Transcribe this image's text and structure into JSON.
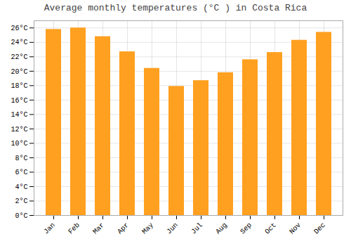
{
  "chart_data": {
    "type": "bar",
    "title": "Average monthly temperatures (°C ) in Costa Rica",
    "categories": [
      "Jan",
      "Feb",
      "Mar",
      "Apr",
      "May",
      "Jun",
      "Jul",
      "Aug",
      "Sep",
      "Oct",
      "Nov",
      "Dec"
    ],
    "values": [
      25.8,
      26.0,
      24.8,
      22.7,
      20.4,
      17.9,
      18.7,
      19.8,
      21.6,
      22.6,
      24.3,
      25.4
    ],
    "color": "#FFA020",
    "ylim": [
      0,
      27
    ],
    "yticks": [
      {
        "value": 0,
        "label": "0°C"
      },
      {
        "value": 2,
        "label": "2°C"
      },
      {
        "value": 4,
        "label": "4°C"
      },
      {
        "value": 6,
        "label": "6°C"
      },
      {
        "value": 8,
        "label": "8°C"
      },
      {
        "value": 10,
        "label": "10°C"
      },
      {
        "value": 12,
        "label": "12°C"
      },
      {
        "value": 14,
        "label": "14°C"
      },
      {
        "value": 16,
        "label": "16°C"
      },
      {
        "value": 18,
        "label": "18°C"
      },
      {
        "value": 20,
        "label": "20°C"
      },
      {
        "value": 22,
        "label": "22°C"
      },
      {
        "value": 24,
        "label": "24°C"
      },
      {
        "value": 26,
        "label": "26°C"
      }
    ],
    "grid": true
  }
}
